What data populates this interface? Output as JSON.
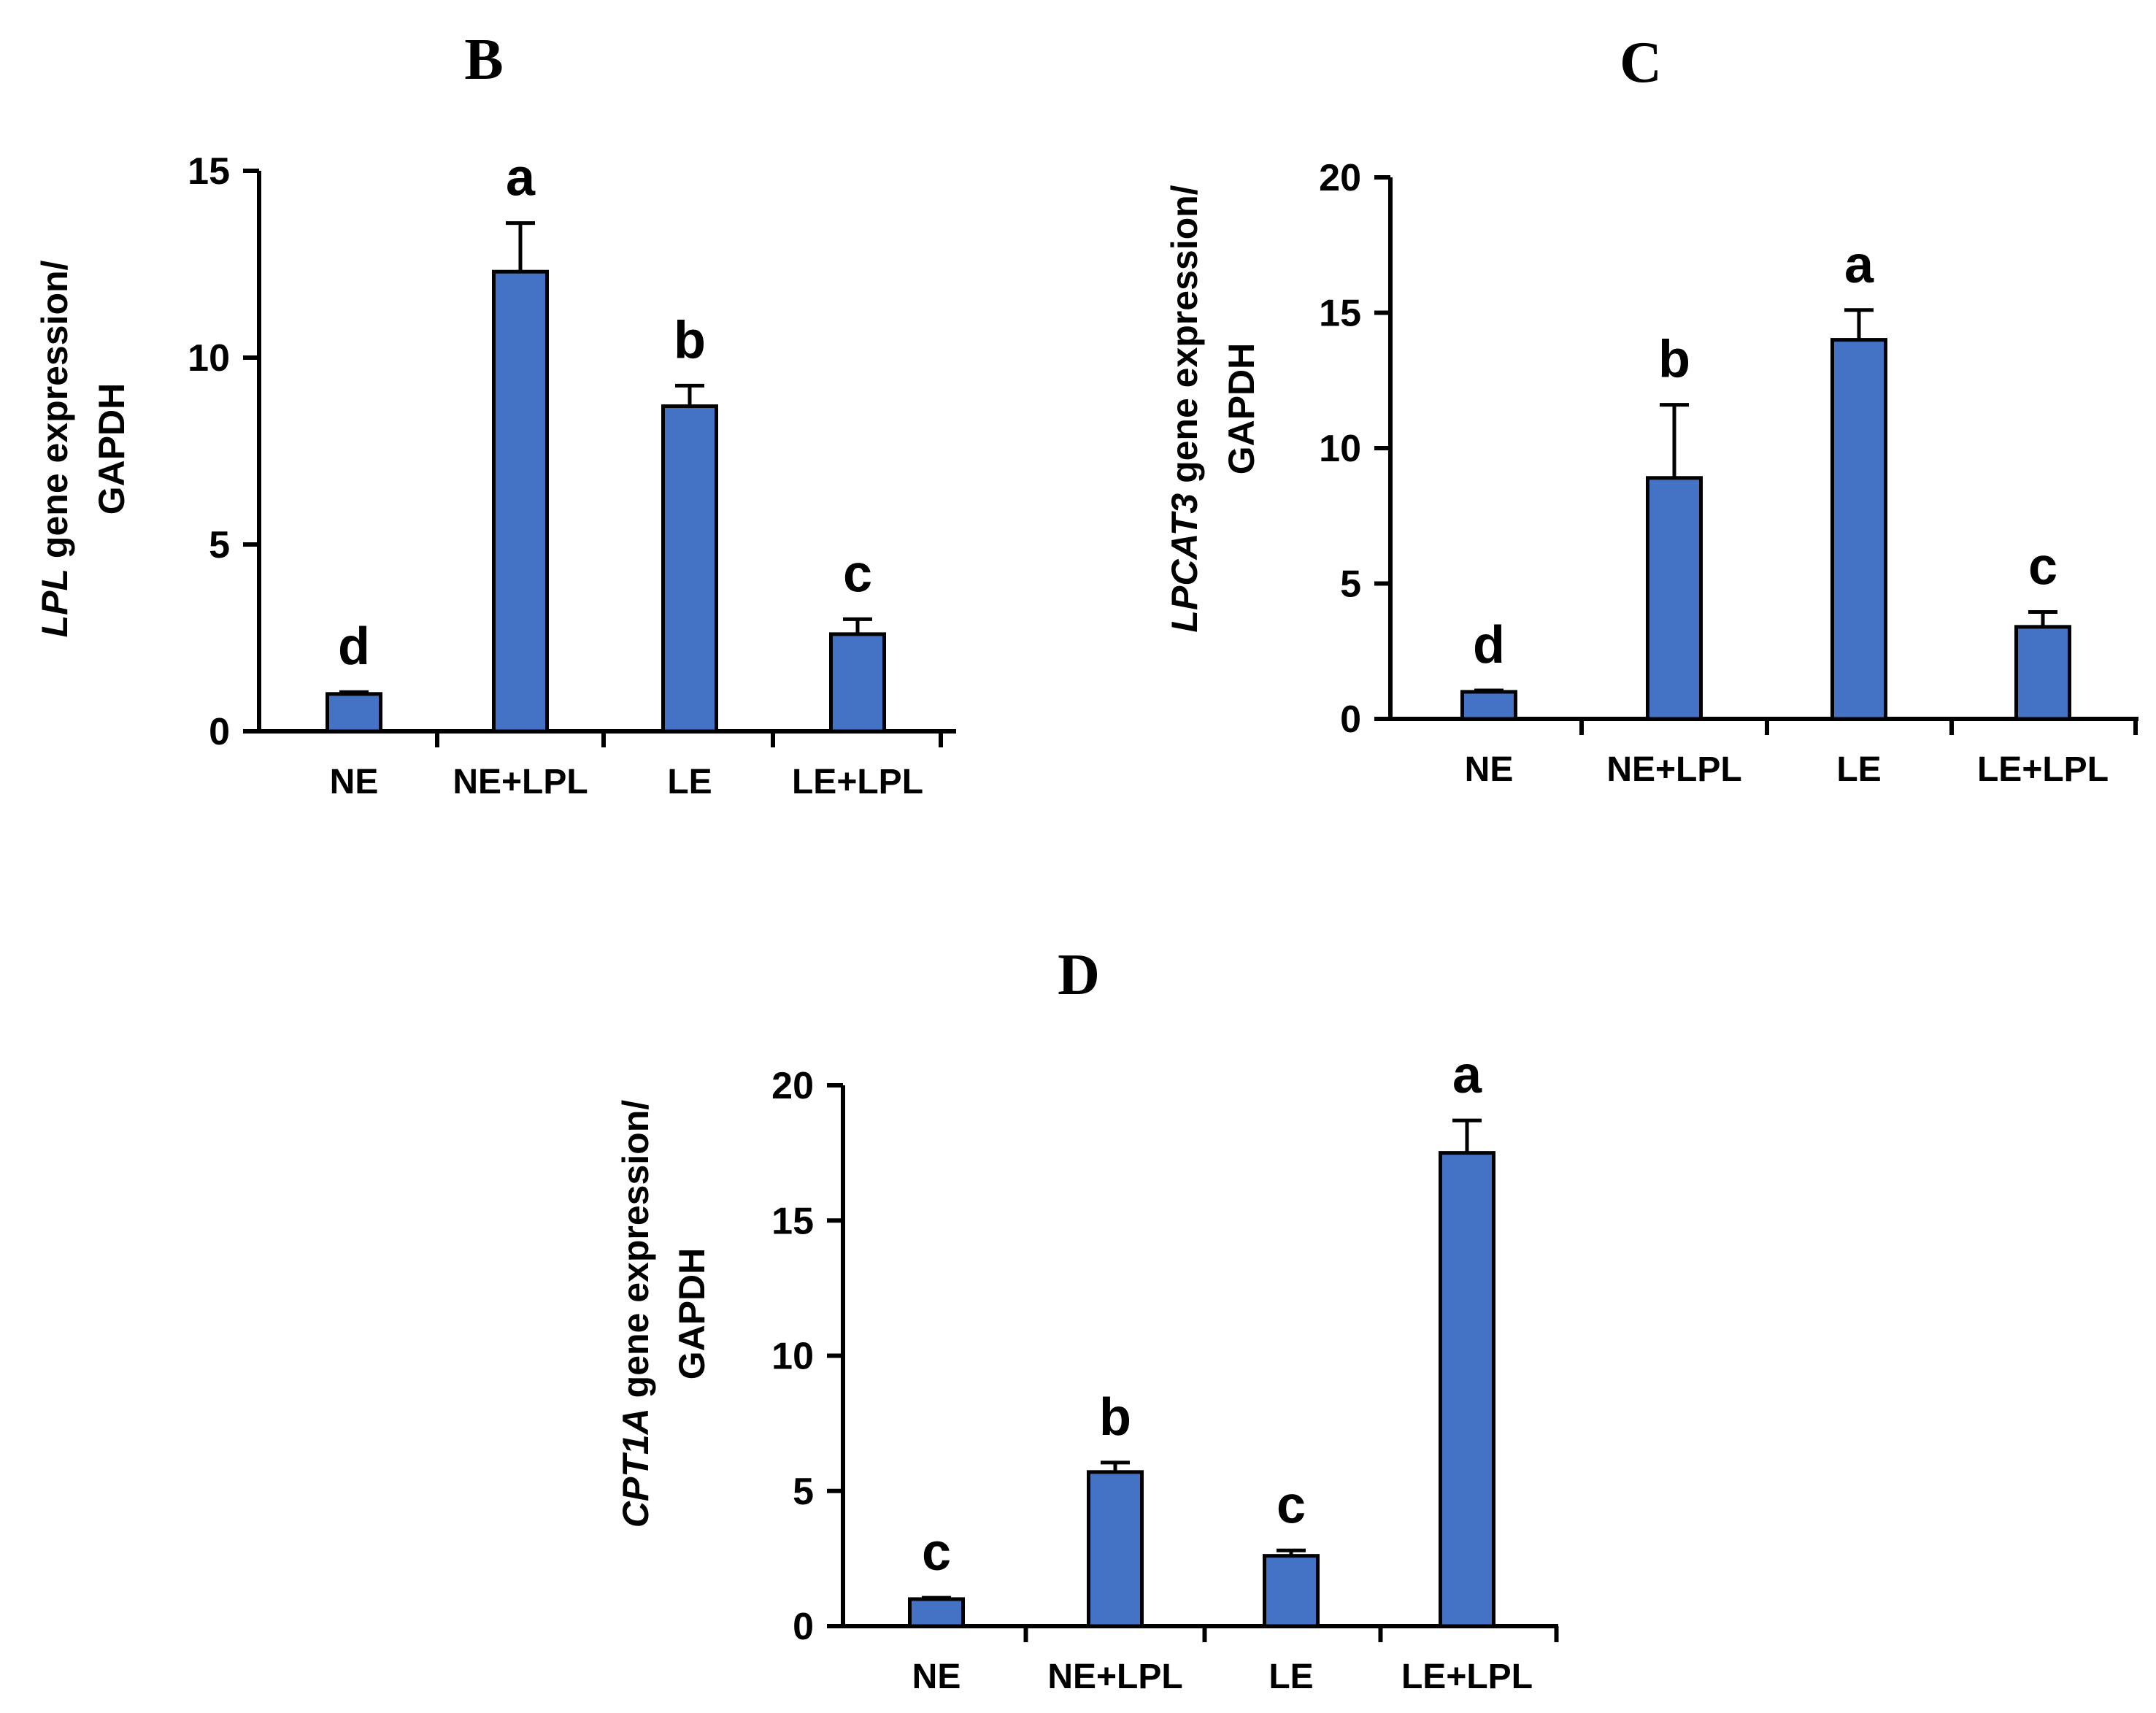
{
  "chart_data": [
    {
      "panel": "B",
      "type": "bar",
      "categories": [
        "NE",
        "NE+LPL",
        "LE",
        "LE+LPL"
      ],
      "values": [
        1.0,
        12.3,
        8.7,
        2.6
      ],
      "errors": [
        0.05,
        1.3,
        0.55,
        0.4
      ],
      "significance": [
        "d",
        "a",
        "b",
        "c"
      ],
      "ylim": [
        0,
        15
      ],
      "yticks": [
        0,
        5,
        10,
        15
      ],
      "ylabel_italic": "LPL",
      "ylabel_rest": " gene expression/",
      "ylabel_line2": "GAPDH",
      "color": "#4472C4"
    },
    {
      "panel": "C",
      "type": "bar",
      "categories": [
        "NE",
        "NE+LPL",
        "LE",
        "LE+LPL"
      ],
      "values": [
        1.0,
        8.9,
        14.0,
        3.4
      ],
      "errors": [
        0.05,
        2.7,
        1.1,
        0.55
      ],
      "significance": [
        "d",
        "b",
        "a",
        "c"
      ],
      "ylim": [
        0,
        20
      ],
      "yticks": [
        0,
        5,
        10,
        15,
        20
      ],
      "ylabel_italic": "LPCAT3",
      "ylabel_rest": " gene expression/",
      "ylabel_line2": "GAPDH",
      "color": "#4472C4"
    },
    {
      "panel": "D",
      "type": "bar",
      "categories": [
        "NE",
        "NE+LPL",
        "LE",
        "LE+LPL"
      ],
      "values": [
        1.0,
        5.7,
        2.6,
        17.5
      ],
      "errors": [
        0.05,
        0.35,
        0.2,
        1.2
      ],
      "significance": [
        "c",
        "b",
        "c",
        "a"
      ],
      "ylim": [
        0,
        20
      ],
      "yticks": [
        0,
        5,
        10,
        15,
        20
      ],
      "ylabel_italic": "CPT1A",
      "ylabel_rest": " gene expression/",
      "ylabel_line2": "GAPDH",
      "color": "#4472C4"
    }
  ]
}
